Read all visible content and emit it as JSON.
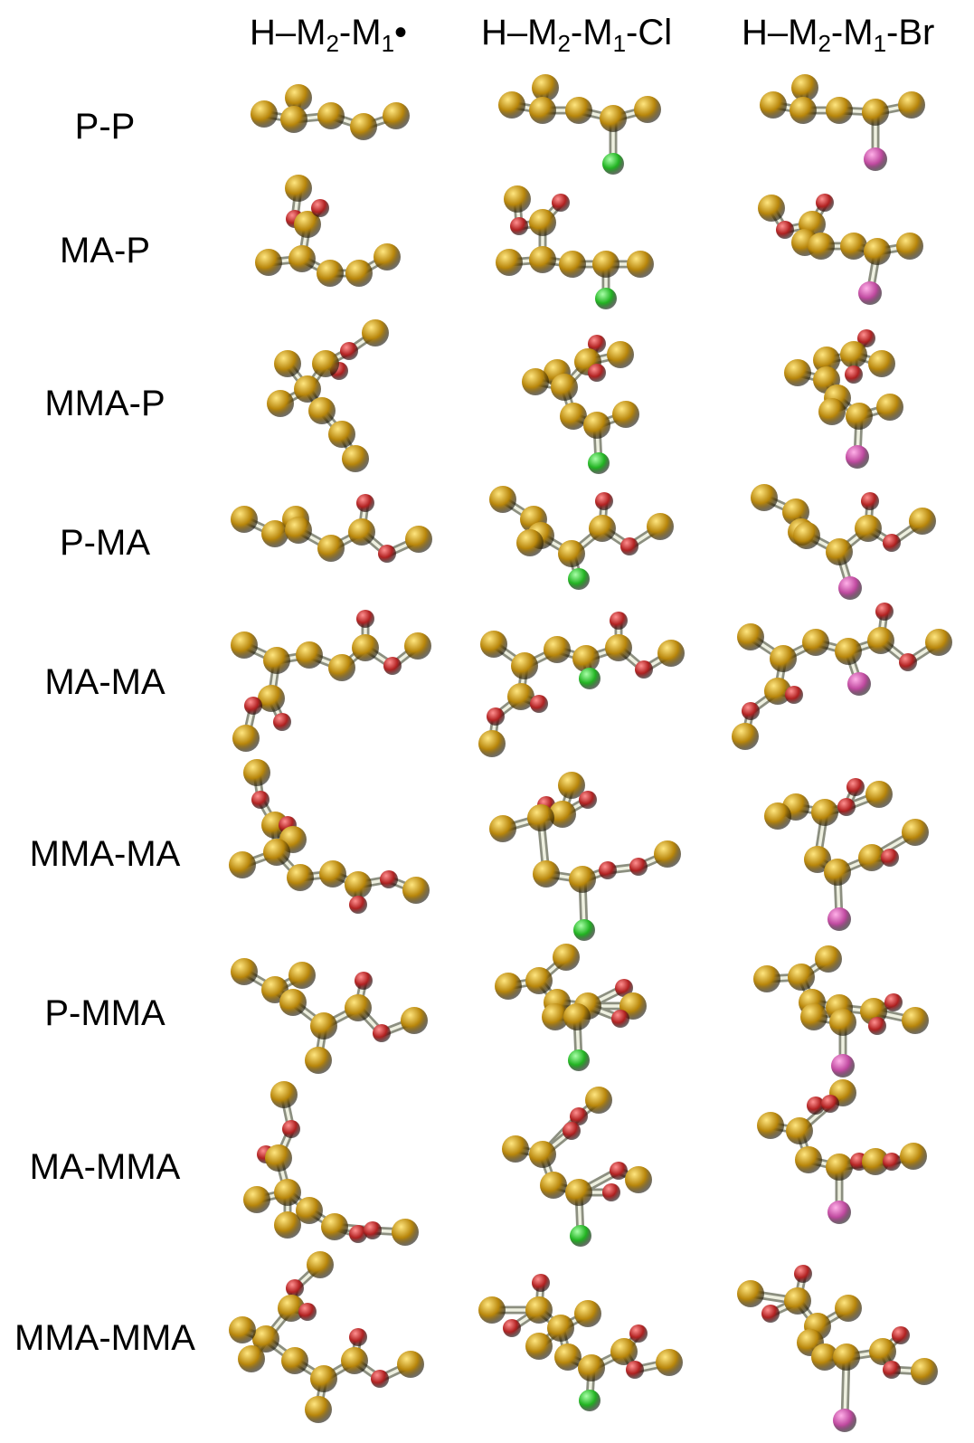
{
  "headers": [
    {
      "h": "H–M",
      "s1": "2",
      "m": "-M",
      "s2": "1",
      "t": "•"
    },
    {
      "h": "H–M",
      "s1": "2",
      "m": "-M",
      "s2": "1",
      "t": "-Cl"
    },
    {
      "h": "H–M",
      "s1": "2",
      "m": "-M",
      "s2": "1",
      "t": "-Br"
    }
  ],
  "rows": [
    "P-P",
    "MA-P",
    "MMA-P",
    "P-MA",
    "MA-MA",
    "MMA-MA",
    "P-MMA",
    "MA-MMA",
    "MMA-MMA"
  ],
  "colors": {
    "carbon": "#b8860b",
    "oxygen": "#b22222",
    "chlorine": "#22b422",
    "bromine": "#c04aa0",
    "bond": "#c8cbb8"
  }
}
